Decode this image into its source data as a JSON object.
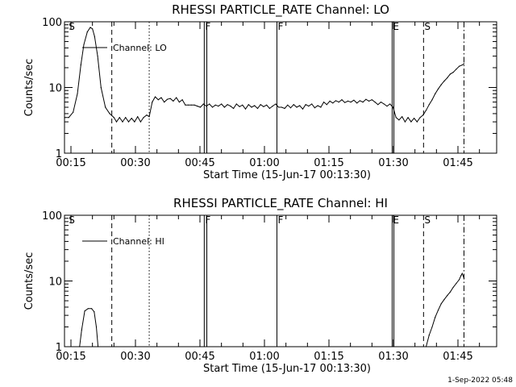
{
  "timestamp": "1-Sep-2022 05:48",
  "chart_data": [
    {
      "type": "line",
      "title": "RHESSI PARTICLE_RATE Channel: LO",
      "xlabel": "Start Time (15-Jun-17 00:13:30)",
      "ylabel": "Counts/sec",
      "yscale": "log",
      "ylim": [
        1,
        100
      ],
      "xlim": [
        13.5,
        114
      ],
      "xticks": [
        {
          "t": 15,
          "label": "00:15"
        },
        {
          "t": 30,
          "label": "00:30"
        },
        {
          "t": 45,
          "label": "00:45"
        },
        {
          "t": 60,
          "label": "01:00"
        },
        {
          "t": 75,
          "label": "01:15"
        },
        {
          "t": 90,
          "label": "01:30"
        },
        {
          "t": 105,
          "label": "01:45"
        }
      ],
      "yticks": [
        {
          "v": 1,
          "label": "1"
        },
        {
          "v": 10,
          "label": "10"
        },
        {
          "v": 100,
          "label": "100"
        }
      ],
      "legend": "Channel: LO",
      "markers": [
        {
          "t": 14.3,
          "label": "S",
          "style": "none"
        },
        {
          "t": 24.5,
          "label": "",
          "style": "dashed"
        },
        {
          "t": 33.2,
          "label": "",
          "style": "dotted"
        },
        {
          "t": 46.0,
          "label": "F",
          "style": "solid"
        },
        {
          "t": 46.6,
          "label": "",
          "style": "solid"
        },
        {
          "t": 62.9,
          "label": "F",
          "style": "solid"
        },
        {
          "t": 89.7,
          "label": "E",
          "style": "solid"
        },
        {
          "t": 90.1,
          "label": "",
          "style": "solid"
        },
        {
          "t": 97.0,
          "label": "S",
          "style": "dashed"
        },
        {
          "t": 106.4,
          "label": "",
          "style": "dashdot"
        }
      ],
      "series": [
        {
          "name": "LO",
          "x": [
            13.6,
            14.5,
            15.5,
            16.5,
            17.3,
            18.0,
            18.8,
            19.5,
            20.0,
            20.5,
            21.2,
            22.0,
            23.0,
            24.0,
            25.0,
            25.6,
            26.3,
            27.0,
            27.7,
            28.4,
            29.1,
            29.8,
            30.5,
            31.2,
            31.9,
            32.6,
            33.2,
            33.9,
            34.6,
            35.3,
            36.0,
            36.7,
            37.4,
            38.1,
            38.8,
            39.5,
            40.2,
            40.9,
            41.6,
            42.3,
            43.0,
            43.7,
            44.4,
            45.1,
            45.8,
            46.5,
            47.2,
            47.9,
            48.6,
            49.3,
            50.0,
            50.7,
            51.4,
            52.1,
            52.8,
            53.5,
            54.2,
            54.9,
            55.6,
            56.3,
            57.0,
            57.7,
            58.4,
            59.1,
            59.8,
            60.5,
            61.2,
            61.9,
            62.6,
            63.3,
            64.0,
            64.7,
            65.4,
            66.1,
            66.8,
            67.5,
            68.2,
            68.9,
            69.6,
            70.3,
            71.0,
            71.7,
            72.4,
            73.1,
            73.8,
            74.5,
            75.2,
            75.9,
            76.6,
            77.3,
            78.0,
            78.7,
            79.4,
            80.1,
            80.8,
            81.5,
            82.2,
            82.9,
            83.6,
            84.3,
            85.0,
            85.7,
            86.4,
            87.1,
            87.8,
            88.5,
            89.2,
            89.9,
            90.6,
            91.3,
            92.0,
            92.7,
            93.4,
            94.1,
            94.8,
            95.5,
            96.2,
            96.9,
            97.6,
            98.3,
            99.0,
            99.7,
            100.4,
            101.1,
            101.8,
            102.5,
            103.2,
            103.9,
            104.6,
            105.3,
            106.0,
            106.4
          ],
          "y": [
            3.5,
            3.5,
            4.2,
            8.0,
            22,
            45,
            70,
            82,
            78,
            60,
            30,
            10,
            5.0,
            4.0,
            3.5,
            3.0,
            3.5,
            3.0,
            3.5,
            3.0,
            3.4,
            3.0,
            3.6,
            3.0,
            3.5,
            3.8,
            3.6,
            6.0,
            7.2,
            6.5,
            7.0,
            6.0,
            6.6,
            6.8,
            6.2,
            7.0,
            6.0,
            6.5,
            5.4,
            5.4,
            5.4,
            5.4,
            5.2,
            5.0,
            5.6,
            5.2,
            5.6,
            5.0,
            5.4,
            5.2,
            5.6,
            5.0,
            5.5,
            5.2,
            4.8,
            5.6,
            5.1,
            5.4,
            4.7,
            5.5,
            5.0,
            5.3,
            4.8,
            5.5,
            5.1,
            5.4,
            4.8,
            5.2,
            5.6,
            5.0,
            5.0,
            4.8,
            5.4,
            4.9,
            5.5,
            5.0,
            5.3,
            4.7,
            5.5,
            5.2,
            5.6,
            4.9,
            5.3,
            5.0,
            6.0,
            5.5,
            6.2,
            5.8,
            6.3,
            6.0,
            6.5,
            5.9,
            6.2,
            6.0,
            6.4,
            5.8,
            6.3,
            6.0,
            6.6,
            6.2,
            6.5,
            6.0,
            5.5,
            6.0,
            5.6,
            5.2,
            5.6,
            5.0,
            3.5,
            3.2,
            3.6,
            3.0,
            3.5,
            3.0,
            3.4,
            3.0,
            3.5,
            3.8,
            4.5,
            5.5,
            6.5,
            8.0,
            9.5,
            11,
            12.5,
            14,
            16,
            17,
            19,
            21,
            22,
            23
          ]
        }
      ]
    },
    {
      "type": "line",
      "title": "RHESSI PARTICLE_RATE Channel: HI",
      "xlabel": "Start Time (15-Jun-17 00:13:30)",
      "ylabel": "Counts/sec",
      "yscale": "log",
      "ylim": [
        1,
        100
      ],
      "xlim": [
        13.5,
        114
      ],
      "xticks": [
        {
          "t": 15,
          "label": "00:15"
        },
        {
          "t": 30,
          "label": "00:30"
        },
        {
          "t": 45,
          "label": "00:45"
        },
        {
          "t": 60,
          "label": "01:00"
        },
        {
          "t": 75,
          "label": "01:15"
        },
        {
          "t": 90,
          "label": "01:30"
        },
        {
          "t": 105,
          "label": "01:45"
        }
      ],
      "yticks": [
        {
          "v": 1,
          "label": "1"
        },
        {
          "v": 10,
          "label": "10"
        },
        {
          "v": 100,
          "label": "100"
        }
      ],
      "legend": "Channel: HI",
      "markers": [
        {
          "t": 14.3,
          "label": "S",
          "style": "none"
        },
        {
          "t": 24.5,
          "label": "",
          "style": "dashed"
        },
        {
          "t": 33.2,
          "label": "",
          "style": "dotted"
        },
        {
          "t": 46.0,
          "label": "F",
          "style": "solid"
        },
        {
          "t": 46.6,
          "label": "",
          "style": "solid"
        },
        {
          "t": 62.9,
          "label": "F",
          "style": "solid"
        },
        {
          "t": 89.7,
          "label": "E",
          "style": "solid"
        },
        {
          "t": 90.1,
          "label": "",
          "style": "solid"
        },
        {
          "t": 97.0,
          "label": "S",
          "style": "dashed"
        },
        {
          "t": 106.4,
          "label": "",
          "style": "dashdot"
        }
      ],
      "series": [
        {
          "name": "HI",
          "segments": [
            {
              "x": [
                17.0,
                17.5,
                18.2,
                19.0,
                19.8,
                20.4,
                20.9,
                21.3
              ],
              "y": [
                1.0,
                1.8,
                3.5,
                3.8,
                3.8,
                3.4,
                2.0,
                1.0
              ]
            },
            {
              "x": [
                97.6,
                98.3,
                99.0,
                99.7,
                100.4,
                101.1,
                101.8,
                102.5,
                103.2,
                103.9,
                104.6,
                105.3,
                105.7,
                106.0,
                106.4
              ],
              "y": [
                1.0,
                1.5,
                2.0,
                2.8,
                3.6,
                4.5,
                5.2,
                6.0,
                6.8,
                8.0,
                9.2,
                10.5,
                12,
                13,
                11
              ]
            }
          ]
        }
      ]
    }
  ]
}
